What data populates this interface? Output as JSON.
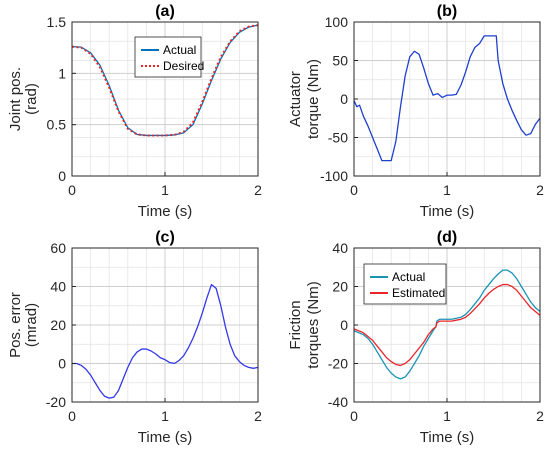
{
  "chart_data": [
    {
      "id": "a",
      "type": "line",
      "title": "(a)",
      "xlabel": "Time (s)",
      "ylabel": [
        "Joint pos.",
        "(rad)"
      ],
      "xlim": [
        0,
        2
      ],
      "ylim": [
        0,
        1.5
      ],
      "xticks": [
        0,
        1,
        2
      ],
      "yticks": [
        0,
        0.5,
        1,
        1.5
      ],
      "yticklabels": [
        "0",
        "0.5",
        "1",
        "1.5"
      ],
      "grid": true,
      "legend": "upper-center",
      "series": [
        {
          "name": "Actual",
          "color": "#0072BD",
          "style": "solid",
          "x": [
            0,
            0.1,
            0.2,
            0.3,
            0.4,
            0.5,
            0.6,
            0.7,
            0.8,
            0.9,
            1.0,
            1.1,
            1.2,
            1.3,
            1.4,
            1.5,
            1.6,
            1.7,
            1.8,
            1.9,
            2.0
          ],
          "y": [
            1.26,
            1.255,
            1.2,
            1.08,
            0.88,
            0.64,
            0.47,
            0.405,
            0.395,
            0.395,
            0.395,
            0.4,
            0.42,
            0.5,
            0.7,
            0.93,
            1.14,
            1.3,
            1.4,
            1.45,
            1.47
          ]
        },
        {
          "name": "Desired",
          "color": "#E8262A",
          "style": "dotted",
          "x": [
            0,
            0.1,
            0.2,
            0.3,
            0.4,
            0.5,
            0.6,
            0.7,
            0.8,
            0.9,
            1.0,
            1.1,
            1.2,
            1.3,
            1.4,
            1.5,
            1.6,
            1.7,
            1.8,
            1.9,
            2.0
          ],
          "y": [
            1.26,
            1.25,
            1.19,
            1.06,
            0.86,
            0.63,
            0.46,
            0.405,
            0.395,
            0.395,
            0.395,
            0.4,
            0.43,
            0.52,
            0.72,
            0.95,
            1.16,
            1.31,
            1.41,
            1.455,
            1.47
          ]
        }
      ]
    },
    {
      "id": "b",
      "type": "line",
      "title": "(b)",
      "xlabel": "Time (s)",
      "ylabel": [
        "Actuator",
        "torque (Nm)"
      ],
      "xlim": [
        0,
        2
      ],
      "ylim": [
        -100,
        100
      ],
      "xticks": [
        0,
        1,
        2
      ],
      "yticks": [
        -100,
        -50,
        0,
        50,
        100
      ],
      "yticklabels": [
        "-100",
        "-50",
        "0",
        "50",
        "100"
      ],
      "grid": true,
      "series": [
        {
          "name": "",
          "color": "#1F3FCF",
          "style": "solid",
          "x": [
            0,
            0.03,
            0.06,
            0.1,
            0.15,
            0.2,
            0.25,
            0.3,
            0.35,
            0.4,
            0.45,
            0.5,
            0.55,
            0.6,
            0.65,
            0.7,
            0.75,
            0.8,
            0.85,
            0.9,
            0.95,
            1.0,
            1.05,
            1.1,
            1.15,
            1.2,
            1.25,
            1.3,
            1.35,
            1.4,
            1.45,
            1.5,
            1.53,
            1.55,
            1.6,
            1.65,
            1.7,
            1.75,
            1.8,
            1.85,
            1.9,
            1.95,
            2.0
          ],
          "y": [
            -2,
            -10,
            -8,
            -22,
            -35,
            -50,
            -65,
            -80,
            -80,
            -80,
            -55,
            -10,
            30,
            55,
            62,
            58,
            40,
            20,
            5,
            7,
            2,
            5,
            5,
            6,
            18,
            35,
            55,
            67,
            72,
            82,
            82,
            82,
            82,
            50,
            20,
            0,
            -15,
            -28,
            -40,
            -47,
            -45,
            -33,
            -25
          ]
        }
      ]
    },
    {
      "id": "c",
      "type": "line",
      "title": "(c)",
      "xlabel": "Time (s)",
      "ylabel": [
        "Pos. error",
        "(mrad)"
      ],
      "xlim": [
        0,
        2
      ],
      "ylim": [
        -20,
        60
      ],
      "xticks": [
        0,
        1,
        2
      ],
      "yticks": [
        -20,
        0,
        20,
        40,
        60
      ],
      "yticklabels": [
        "-20",
        "0",
        "20",
        "40",
        "60"
      ],
      "grid": true,
      "series": [
        {
          "name": "",
          "color": "#3338E8",
          "style": "solid",
          "x": [
            0,
            0.05,
            0.1,
            0.15,
            0.2,
            0.25,
            0.3,
            0.35,
            0.4,
            0.45,
            0.5,
            0.55,
            0.6,
            0.65,
            0.7,
            0.75,
            0.8,
            0.85,
            0.9,
            0.95,
            1.0,
            1.05,
            1.1,
            1.15,
            1.2,
            1.25,
            1.3,
            1.35,
            1.4,
            1.45,
            1.5,
            1.55,
            1.6,
            1.65,
            1.7,
            1.75,
            1.8,
            1.85,
            1.9,
            1.95,
            2.0
          ],
          "y": [
            0,
            0,
            -1,
            -3,
            -6,
            -10,
            -14,
            -17,
            -18,
            -17.5,
            -14,
            -8,
            -2,
            3,
            6,
            7.5,
            7.5,
            6.5,
            5,
            3,
            2,
            0.5,
            0,
            1.5,
            4,
            8,
            13,
            19,
            26,
            34,
            41,
            39,
            30,
            19,
            10,
            4,
            1,
            -1,
            -2,
            -2.5,
            -2
          ]
        }
      ]
    },
    {
      "id": "d",
      "type": "line",
      "title": "(d)",
      "xlabel": "Time (s)",
      "ylabel": [
        "Friction",
        "torques (Nm)"
      ],
      "xlim": [
        0,
        2
      ],
      "ylim": [
        -40,
        40
      ],
      "xticks": [
        0,
        1,
        2
      ],
      "yticks": [
        -40,
        -20,
        0,
        20,
        40
      ],
      "yticklabels": [
        "-40",
        "-20",
        "0",
        "20",
        "40"
      ],
      "grid": true,
      "legend": "upper-left",
      "series": [
        {
          "name": "Actual",
          "color": "#1A93B5",
          "style": "solid",
          "x": [
            0,
            0.05,
            0.1,
            0.15,
            0.2,
            0.25,
            0.3,
            0.35,
            0.4,
            0.45,
            0.5,
            0.55,
            0.6,
            0.65,
            0.7,
            0.75,
            0.8,
            0.85,
            0.88,
            0.89,
            0.92,
            1.0,
            1.05,
            1.1,
            1.15,
            1.2,
            1.25,
            1.3,
            1.35,
            1.4,
            1.45,
            1.5,
            1.55,
            1.6,
            1.65,
            1.7,
            1.75,
            1.8,
            1.85,
            1.9,
            1.95,
            2.0
          ],
          "y": [
            -3,
            -4,
            -5,
            -7,
            -10,
            -14,
            -18,
            -22,
            -25,
            -27,
            -28,
            -27,
            -24,
            -20,
            -16,
            -11,
            -7,
            -3,
            -1,
            2,
            3,
            3,
            3,
            3.5,
            4,
            5.5,
            8,
            11,
            14,
            18,
            21,
            24,
            26.5,
            28.5,
            28.5,
            27,
            24,
            20,
            16,
            12,
            9,
            7
          ]
        },
        {
          "name": "Estimated",
          "color": "#E8262A",
          "style": "solid",
          "x": [
            0,
            0.05,
            0.1,
            0.15,
            0.2,
            0.25,
            0.3,
            0.35,
            0.4,
            0.45,
            0.5,
            0.55,
            0.6,
            0.65,
            0.7,
            0.75,
            0.8,
            0.85,
            0.88,
            0.89,
            0.92,
            1.0,
            1.05,
            1.1,
            1.15,
            1.2,
            1.25,
            1.3,
            1.35,
            1.4,
            1.45,
            1.5,
            1.55,
            1.6,
            1.65,
            1.7,
            1.75,
            1.8,
            1.85,
            1.9,
            1.95,
            2.0
          ],
          "y": [
            -2,
            -3,
            -4,
            -6,
            -8,
            -11,
            -14,
            -17,
            -19,
            -20.5,
            -21,
            -20,
            -18,
            -15,
            -12,
            -9,
            -5,
            -2,
            -1,
            1,
            2,
            2,
            2,
            2.5,
            3,
            4,
            6,
            8.5,
            11,
            14,
            16.5,
            18.5,
            20,
            21,
            21,
            20,
            18,
            15,
            12,
            9,
            7,
            5
          ]
        }
      ]
    }
  ]
}
